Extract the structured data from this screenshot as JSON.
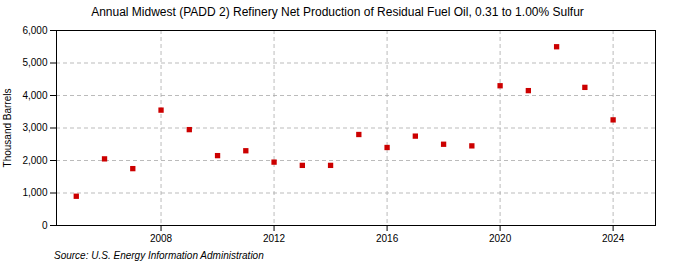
{
  "chart_data": {
    "type": "scatter",
    "title": "Annual Midwest (PADD 2) Refinery Net Production of Residual Fuel Oil, 0.31 to 1.00% Sulfur",
    "ylabel": "Thousand Barrels",
    "source": "Source: U.S. Energy Information Administration",
    "x": [
      2005,
      2006,
      2007,
      2008,
      2009,
      2010,
      2011,
      2012,
      2013,
      2014,
      2015,
      2016,
      2017,
      2018,
      2019,
      2020,
      2021,
      2022,
      2023,
      2024
    ],
    "values": [
      900,
      2050,
      1750,
      3550,
      2950,
      2150,
      2300,
      1950,
      1850,
      1850,
      2800,
      2400,
      2750,
      2500,
      2450,
      4300,
      4150,
      5500,
      4250,
      3250
    ],
    "color": "#cc0000",
    "marker": "square",
    "xlim": [
      2004.3,
      2025.5
    ],
    "xticks": [
      2008,
      2012,
      2016,
      2020,
      2024
    ],
    "ylim": [
      0,
      6000
    ],
    "yticks": [
      0,
      {
        "value": 1000,
        "label": "1,000"
      },
      {
        "value": 2000,
        "label": "2,000"
      },
      {
        "value": 3000,
        "label": "3,000"
      },
      {
        "value": 4000,
        "label": "4,000"
      },
      {
        "value": 5000,
        "label": "5,000"
      },
      {
        "value": 6000,
        "label": "6,000"
      }
    ],
    "grid": true
  }
}
